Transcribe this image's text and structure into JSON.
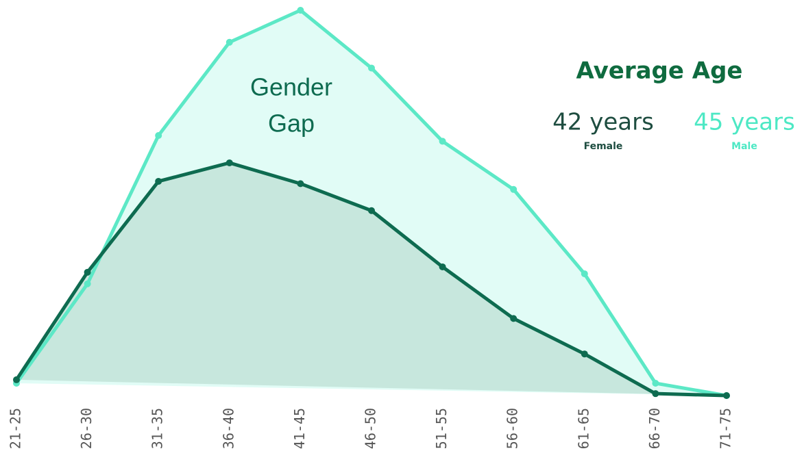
{
  "chart_data": {
    "type": "line",
    "categories": [
      "21-25",
      "26-30",
      "31-35",
      "36-40",
      "41-45",
      "46-50",
      "51-55",
      "56-60",
      "61-65",
      "66-70",
      "71-75"
    ],
    "series": [
      {
        "name": "Male",
        "color": "#5ce8c6",
        "fill": "#dcfbf5",
        "values": [
          3.2,
          29,
          67.5,
          91.7,
          100,
          85,
          66,
          53.5,
          31.6,
          3.2,
          0
        ]
      },
      {
        "name": "Female",
        "color": "#0e6b50",
        "fill": "#c2e3d8",
        "values": [
          4.1,
          32,
          55.6,
          60.4,
          55,
          48,
          33.4,
          20,
          10.8,
          0.5,
          0
        ]
      }
    ],
    "ylim": [
      0,
      100
    ],
    "annotation": [
      "Gender",
      "Gap"
    ],
    "average_age": {
      "title": "Average Age",
      "values": [
        "45 years",
        "42 years"
      ]
    }
  }
}
